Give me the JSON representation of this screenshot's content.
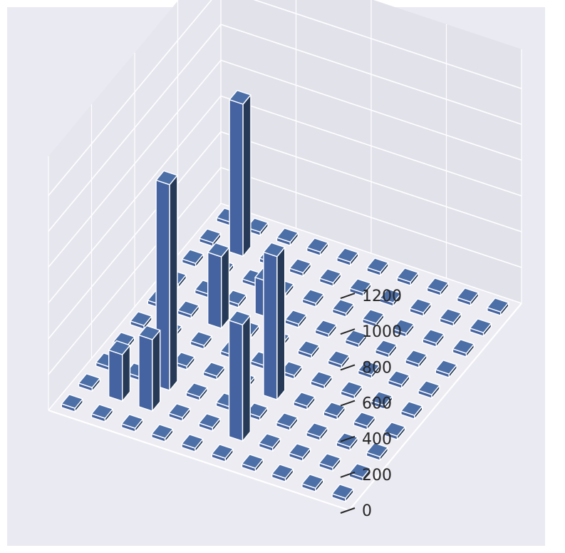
{
  "chart_data": {
    "type": "bar3d",
    "title": "",
    "xlabel": "",
    "ylabel": "",
    "zlabel": "",
    "zlim": [
      0,
      1300
    ],
    "z_ticks": [
      0,
      200,
      400,
      600,
      800,
      1000,
      1200
    ],
    "grid": true,
    "bar_color": "#4c6fa8",
    "grid_shape": [
      10,
      10
    ],
    "heights": [
      [
        20,
        20,
        20,
        20,
        20,
        20,
        20,
        20,
        20,
        20
      ],
      [
        20,
        260,
        20,
        20,
        20,
        20,
        20,
        20,
        850,
        20
      ],
      [
        20,
        400,
        1150,
        20,
        20,
        400,
        20,
        20,
        20,
        20
      ],
      [
        20,
        20,
        20,
        20,
        20,
        20,
        200,
        20,
        20,
        20
      ],
      [
        20,
        20,
        20,
        20,
        20,
        20,
        20,
        20,
        20,
        20
      ],
      [
        20,
        650,
        20,
        800,
        20,
        20,
        20,
        20,
        20,
        20
      ],
      [
        20,
        20,
        20,
        20,
        20,
        20,
        20,
        20,
        20,
        20
      ],
      [
        20,
        20,
        20,
        20,
        20,
        20,
        20,
        20,
        20,
        20
      ],
      [
        20,
        20,
        20,
        20,
        20,
        20,
        20,
        20,
        20,
        20
      ],
      [
        20,
        20,
        20,
        20,
        20,
        20,
        20,
        20,
        20,
        20
      ]
    ]
  },
  "colors": {
    "figure_background": "#eaeaf2",
    "pane_left": "#e6e6ee",
    "pane_right": "#e2e2eb",
    "pane_floor": "#ececf2",
    "grid": "#ffffff",
    "bar_top": "#4c6fa8",
    "bar_front": "#4563a0",
    "bar_side": "#263a58",
    "bar_edge": "#ffffff"
  }
}
